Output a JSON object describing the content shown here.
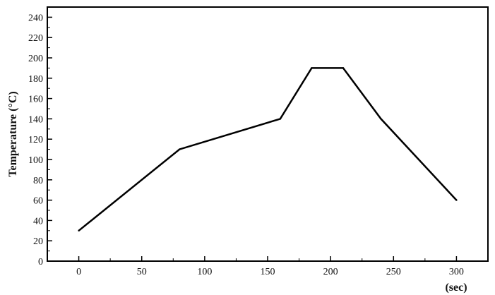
{
  "chart_data": {
    "type": "line",
    "title": "",
    "xlabel": "(sec)",
    "ylabel": "Temperature (°C)",
    "xlim": [
      -25,
      325
    ],
    "ylim": [
      0,
      250
    ],
    "xticks": [
      0,
      50,
      100,
      150,
      200,
      250,
      300
    ],
    "yticks": [
      0,
      20,
      40,
      60,
      80,
      100,
      120,
      140,
      160,
      180,
      200,
      220,
      240
    ],
    "grid": false,
    "series": [
      {
        "x": [
          0,
          80,
          160,
          185,
          210,
          240,
          300
        ],
        "y": [
          30,
          110,
          140,
          190,
          190,
          140,
          60
        ],
        "color": "#000000"
      }
    ]
  }
}
